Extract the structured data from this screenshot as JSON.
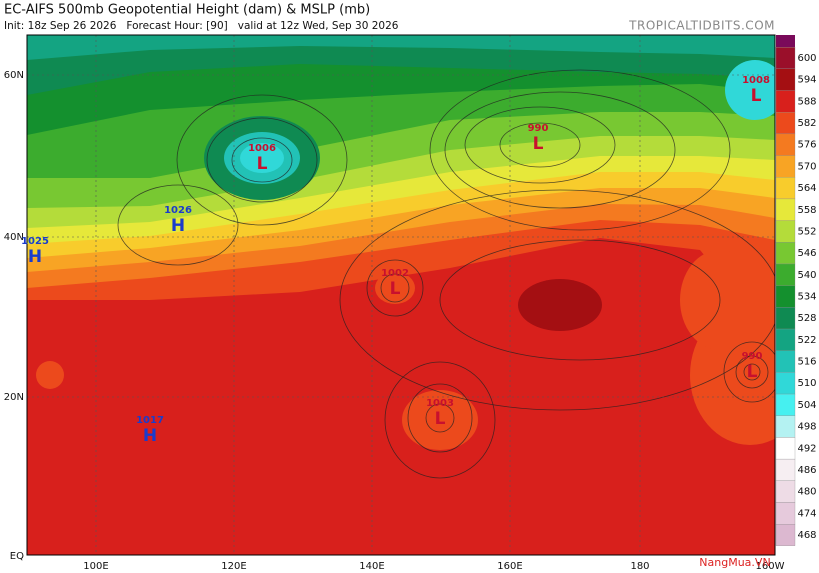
{
  "header": {
    "title": "EC-AIFS 500mb Geopotential Height (dam) & MSLP (mb)",
    "subtitle": "Init: 18z Sep 26 2026   Forecast Hour: [90]   valid at 12z Wed, Sep 30 2026",
    "source": "TROPICALTIDBITS.COM"
  },
  "map": {
    "lat_labels": [
      "60N",
      "40N",
      "20N",
      "EQ"
    ],
    "lon_labels": [
      "100E",
      "120E",
      "140E",
      "160E",
      "180",
      "160W"
    ],
    "pressure_centers": [
      {
        "type": "L",
        "value": "1006"
      },
      {
        "type": "H",
        "value": "1026"
      },
      {
        "type": "H",
        "value": "1025"
      },
      {
        "type": "L",
        "value": "990"
      },
      {
        "type": "L",
        "value": "1008"
      },
      {
        "type": "L",
        "value": "1002"
      },
      {
        "type": "L",
        "value": "1003"
      },
      {
        "type": "L",
        "value": "990"
      },
      {
        "type": "H",
        "value": "1017"
      }
    ],
    "watermark": "NangMua.VN"
  },
  "colorbar": {
    "levels": [
      {
        "label": "600",
        "color": "#9a0f2a"
      },
      {
        "label": "594",
        "color": "#a40f12"
      },
      {
        "label": "588",
        "color": "#d8201c"
      },
      {
        "label": "582",
        "color": "#ec4a1c"
      },
      {
        "label": "576",
        "color": "#f47a20"
      },
      {
        "label": "570",
        "color": "#f8a424"
      },
      {
        "label": "564",
        "color": "#f8cc2c"
      },
      {
        "label": "558",
        "color": "#e6e83a"
      },
      {
        "label": "552",
        "color": "#b4dc3a"
      },
      {
        "label": "546",
        "color": "#78c832"
      },
      {
        "label": "540",
        "color": "#3cac2e"
      },
      {
        "label": "534",
        "color": "#14902e"
      },
      {
        "label": "528",
        "color": "#0f8a52"
      },
      {
        "label": "522",
        "color": "#14a482"
      },
      {
        "label": "516",
        "color": "#22c2b6"
      },
      {
        "label": "510",
        "color": "#30d8d8"
      },
      {
        "label": "504",
        "color": "#46f0f0"
      },
      {
        "label": "498",
        "color": "#b4f2f2"
      },
      {
        "label": "492",
        "color": "#ffffff"
      },
      {
        "label": "486",
        "color": "#f6eef2"
      },
      {
        "label": "480",
        "color": "#eedce6"
      },
      {
        "label": "474",
        "color": "#e6cadc"
      },
      {
        "label": "468",
        "color": "#dcb8d0"
      }
    ]
  }
}
